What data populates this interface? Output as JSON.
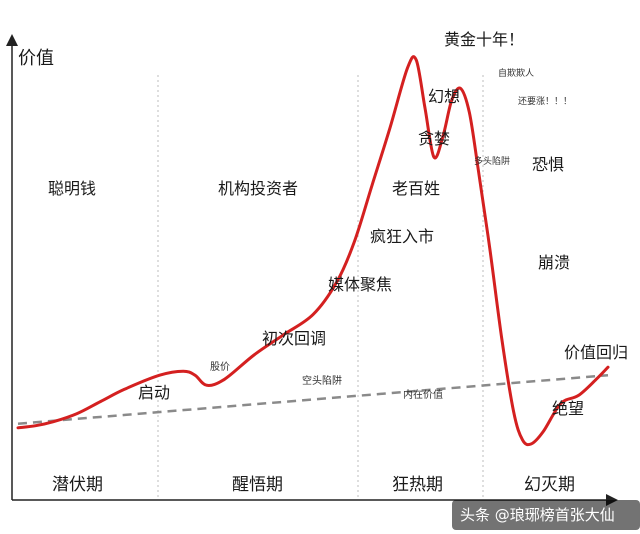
{
  "chart_data": {
    "type": "line",
    "ylabel": "价值",
    "grid": false,
    "colors": {
      "bubble_curve": "#d42020",
      "intrinsic_value_line": "#8a8a8a",
      "axis": "#222222",
      "phase_divider": "#bcbcbc"
    },
    "phases": [
      "潜伏期",
      "醒悟期",
      "狂热期",
      "幻灭期"
    ],
    "investor_labels": [
      "聪明钱",
      "机构投资者",
      "老百姓"
    ],
    "stage_labels": {
      "start": "启动",
      "first_pullback": "初次回调",
      "media": "媒体聚焦",
      "mania": "疯狂入市",
      "greed": "贪婪",
      "delusion": "幻想",
      "peak": "黄金十年！",
      "fear": "恐惧",
      "collapse": "崩溃",
      "despair": "绝望",
      "return_to_value": "价值回归"
    },
    "small_annotations": {
      "price": "股价",
      "short_trap": "空头陷阱",
      "intrinsic_value": "内在价值",
      "self_deception": "自欺欺人",
      "bull_trap": "多头陷阱",
      "still_rising": "还要涨！！！"
    },
    "series": [
      {
        "values": [
          [
            0,
            6
          ],
          [
            3,
            6.5
          ],
          [
            6,
            7.5
          ],
          [
            10,
            9.5
          ],
          [
            14,
            12.5
          ],
          [
            18,
            15.5
          ],
          [
            24,
            19
          ],
          [
            28,
            20
          ],
          [
            30,
            19
          ],
          [
            32,
            16.5
          ],
          [
            35,
            18
          ],
          [
            40,
            24
          ],
          [
            45,
            29
          ],
          [
            50,
            34
          ],
          [
            54,
            42
          ],
          [
            57,
            52
          ],
          [
            60,
            66
          ],
          [
            63,
            80
          ],
          [
            66,
            95
          ],
          [
            67.5,
            97
          ],
          [
            69,
            85
          ],
          [
            70.5,
            73
          ],
          [
            72,
            78
          ],
          [
            73.5,
            87
          ],
          [
            75,
            90
          ],
          [
            76.5,
            84
          ],
          [
            78,
            70
          ],
          [
            80,
            50
          ],
          [
            82,
            28
          ],
          [
            84,
            10
          ],
          [
            85.5,
            3
          ],
          [
            87,
            2
          ],
          [
            89,
            5
          ],
          [
            92,
            12
          ],
          [
            95,
            14
          ],
          [
            98,
            18
          ],
          [
            100,
            21
          ]
        ]
      },
      {
        "values": [
          [
            0,
            7
          ],
          [
            100,
            19
          ]
        ]
      }
    ]
  },
  "watermark": "头条 @琅琊榜首张大仙"
}
